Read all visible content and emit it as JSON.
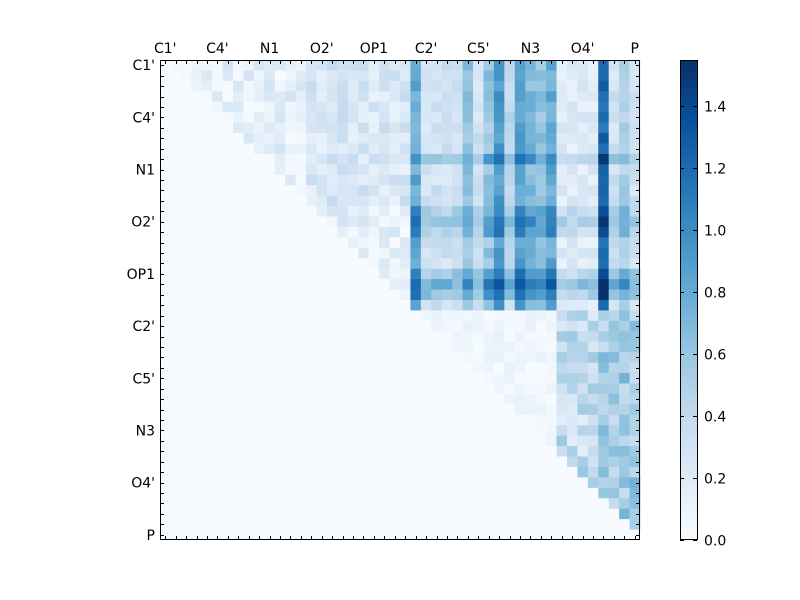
{
  "chart_data": {
    "type": "heatmap",
    "title": "",
    "xlabel": "",
    "ylabel": "",
    "n": 46,
    "x_tick_labels": [
      "C1'",
      "C4'",
      "N1",
      "O2'",
      "OP1",
      "C2'",
      "C5'",
      "N3",
      "O4'",
      "P"
    ],
    "y_tick_labels": [
      "C1'",
      "C4'",
      "N1",
      "O2'",
      "OP1",
      "C2'",
      "C5'",
      "N3",
      "O4'",
      "P"
    ],
    "tick_positions": [
      0,
      5,
      10,
      15,
      20,
      25,
      30,
      35,
      40,
      45
    ],
    "colorbar": {
      "colormap": "Blues",
      "range": [
        0.0,
        1.55
      ],
      "ticks": [
        "0.0",
        "0.2",
        "0.4",
        "0.6",
        "0.8",
        "1.0",
        "1.2",
        "1.4"
      ]
    },
    "structure": "Upper-triangular matrix of pairwise values (zero below the diagonal). Rows 0-23 against columns 24-45 hold the largest values, peaking near 1.5; rows 24-45 hold small values below 0.6.",
    "value_range": [
      0.0,
      1.55
    ]
  }
}
